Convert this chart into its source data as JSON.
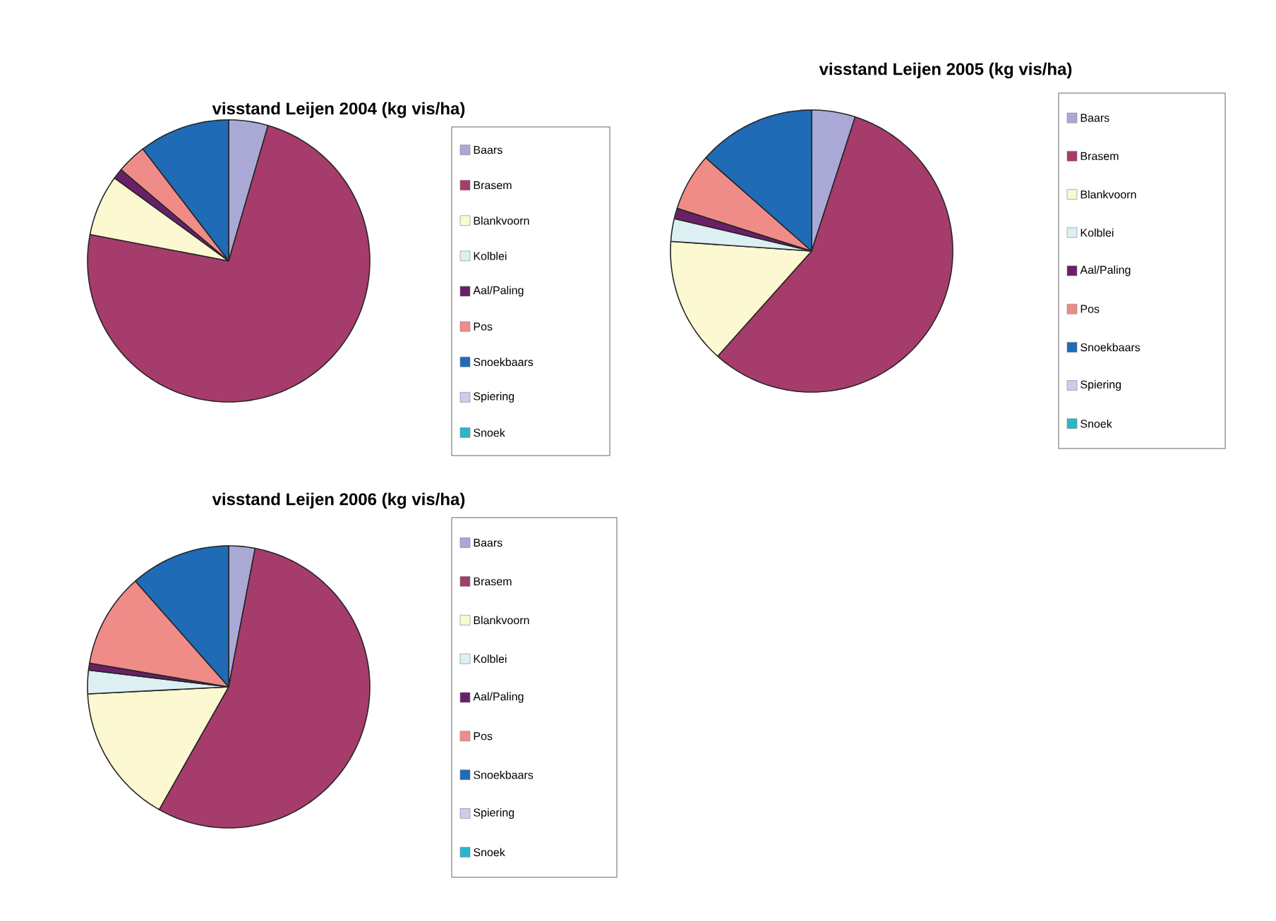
{
  "chart_data": [
    {
      "type": "pie",
      "title": "visstand Leijen 2004 (kg vis/ha)",
      "categories": [
        "Baars",
        "Brasem",
        "Blankvoorn",
        "Kolblei",
        "Aal/Paling",
        "Pos",
        "Snoekbaars",
        "Spiering",
        "Snoek"
      ],
      "values": [
        4.5,
        73.5,
        7,
        0,
        1.2,
        3.4,
        10.4,
        0,
        0
      ],
      "colors": [
        "#aaa9d6",
        "#a63c6c",
        "#fcf8d2",
        "#dcf0f4",
        "#6a2067",
        "#f08c88",
        "#1f6bb5",
        "#ccccf0",
        "#2ab7c9"
      ],
      "legend": "right"
    },
    {
      "type": "pie",
      "title": "visstand Leijen 2005 (kg vis/ha)",
      "categories": [
        "Baars",
        "Brasem",
        "Blankvoorn",
        "Kolblei",
        "Aal/Paling",
        "Pos",
        "Snoekbaars",
        "Spiering",
        "Snoek"
      ],
      "values": [
        5,
        56.6,
        14.5,
        2.6,
        1.2,
        6.6,
        13.5,
        0,
        0
      ],
      "colors": [
        "#aaa9d6",
        "#a63c6c",
        "#fcf8d2",
        "#dcf0f4",
        "#6a2067",
        "#f08c88",
        "#1f6bb5",
        "#ccccf0",
        "#2ab7c9"
      ],
      "legend": "right"
    },
    {
      "type": "pie",
      "title": "visstand Leijen 2006 (kg vis/ha)",
      "categories": [
        "Baars",
        "Brasem",
        "Blankvoorn",
        "Kolblei",
        "Aal/Paling",
        "Pos",
        "Snoekbaars",
        "Spiering",
        "Snoek"
      ],
      "values": [
        3,
        55.2,
        16,
        2.7,
        0.8,
        10.8,
        11.5,
        0,
        0
      ],
      "colors": [
        "#aaa9d6",
        "#a63c6c",
        "#fcf8d2",
        "#dcf0f4",
        "#6a2067",
        "#f08c88",
        "#1f6bb5",
        "#ccccf0",
        "#2ab7c9"
      ],
      "legend": "right"
    }
  ]
}
